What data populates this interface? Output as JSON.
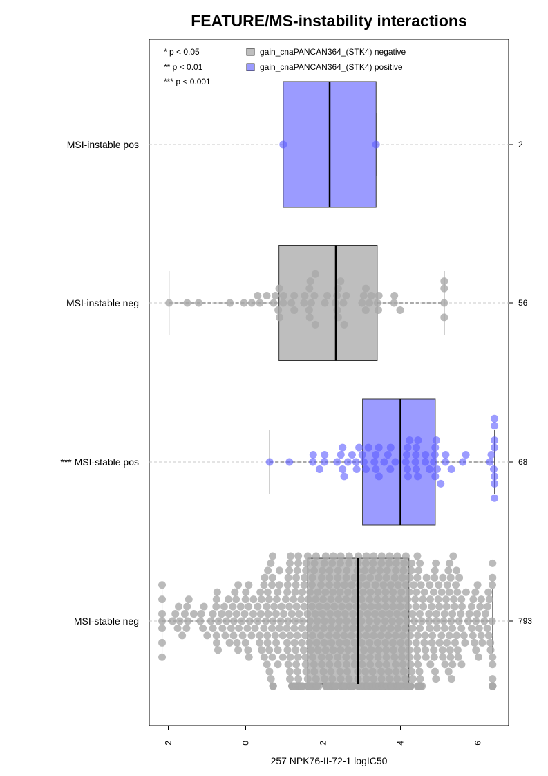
{
  "chart_data": {
    "type": "box-swarm",
    "title": "FEATURE/MS-instability interactions",
    "xlabel": "257 NPK76-II-72-1 logIC50",
    "xlim": [
      -2.6,
      7.0
    ],
    "xticks": [
      "-2",
      "0",
      "2",
      "4",
      "6"
    ],
    "significance_legend": [
      "* p < 0.05",
      "** p < 0.01",
      "*** p < 0.001"
    ],
    "series": [
      {
        "name": "gain_cnaPANCAN364_(STK4) negative",
        "color": "#bebebe"
      },
      {
        "name": "gain_cnaPANCAN364_(STK4) positive",
        "color": "#9b9bff"
      }
    ],
    "groups": [
      {
        "label": "MSI-instable pos",
        "n": "2",
        "series": 1,
        "whisker_low": 0.97,
        "q1": 0.97,
        "median": 2.17,
        "q3": 3.37,
        "whisker_high": 3.37
      },
      {
        "label": "MSI-instable neg",
        "n": "56",
        "series": 0,
        "whisker_low": -1.98,
        "q1": 0.86,
        "median": 2.33,
        "q3": 3.4,
        "whisker_high": 5.13
      },
      {
        "label": "*** MSI-stable pos",
        "n": "68",
        "series": 1,
        "whisker_low": 0.62,
        "q1": 3.02,
        "median": 4.0,
        "q3": 4.9,
        "whisker_high": 6.43
      },
      {
        "label": "MSI-stable neg",
        "n": "793",
        "series": 0,
        "whisker_low": -2.16,
        "q1": 1.6,
        "median": 2.9,
        "q3": 4.22,
        "whisker_high": 6.38
      }
    ]
  }
}
